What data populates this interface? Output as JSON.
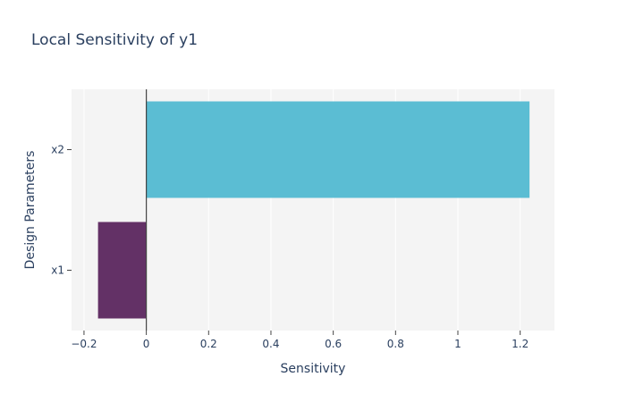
{
  "chart_data": {
    "type": "bar",
    "orientation": "horizontal",
    "title": "Local Sensitivity of y1",
    "xlabel": "Sensitivity",
    "ylabel": "Design Parameters",
    "categories": [
      "x1",
      "x2"
    ],
    "values": [
      -0.155,
      1.23
    ],
    "colors": [
      "#633166",
      "#5bbdd3"
    ],
    "xlim": [
      -0.24,
      1.31
    ],
    "xticks": [
      -0.2,
      0,
      0.2,
      0.4,
      0.6,
      0.8,
      1,
      1.2
    ],
    "xtick_labels": [
      "−0.2",
      "0",
      "0.2",
      "0.4",
      "0.6",
      "0.8",
      "1",
      "1.2"
    ],
    "grid": true,
    "plot_background": "#f4f4f4",
    "legend": "none"
  }
}
